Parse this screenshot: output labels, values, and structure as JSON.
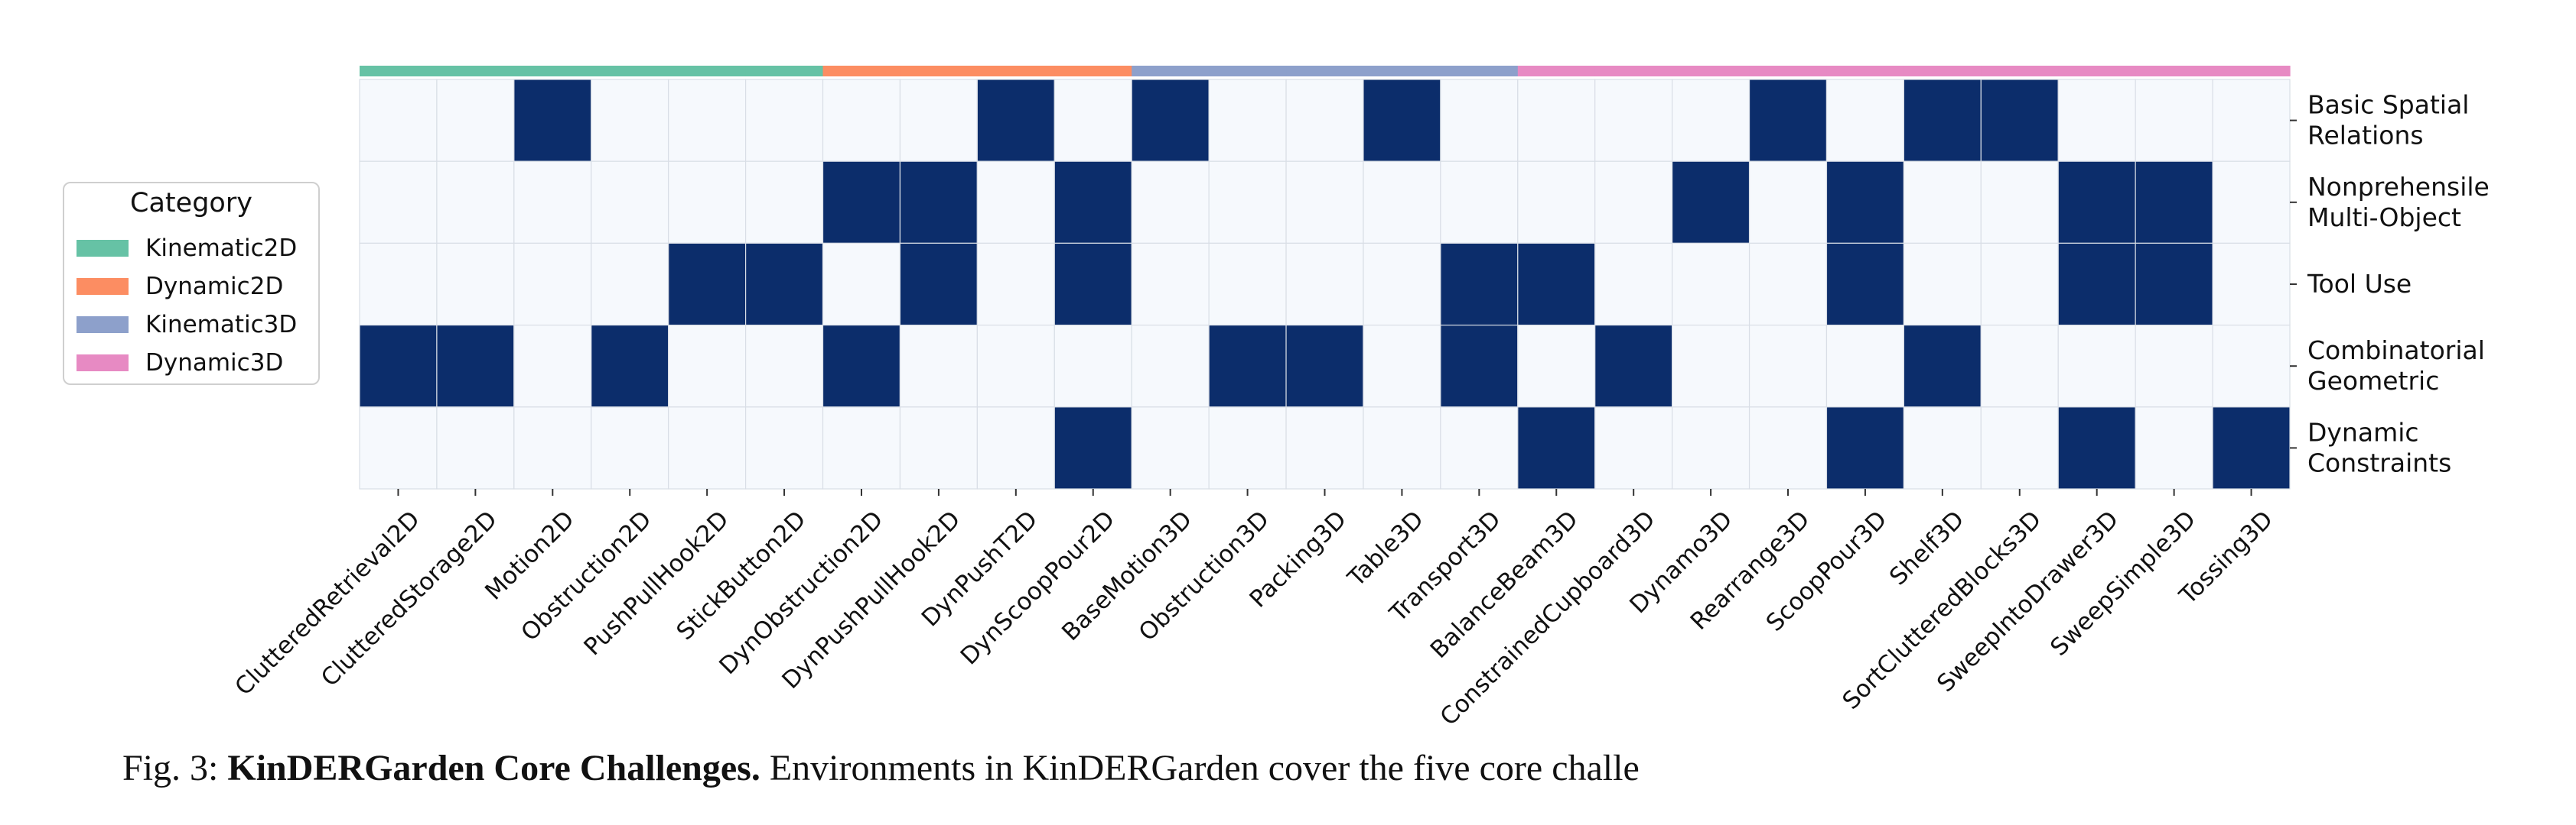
{
  "chart_data": {
    "type": "heatmap",
    "x_categories": [
      "ClutteredRetrieval2D",
      "ClutteredStorage2D",
      "Motion2D",
      "Obstruction2D",
      "PushPullHook2D",
      "StickButton2D",
      "DynObstruction2D",
      "DynPushPullHook2D",
      "DynPushT2D",
      "DynScoopPour2D",
      "BaseMotion3D",
      "Obstruction3D",
      "Packing3D",
      "Table3D",
      "Transport3D",
      "BalanceBeam3D",
      "ConstrainedCupboard3D",
      "Dynamo3D",
      "Rearrange3D",
      "ScoopPour3D",
      "Shelf3D",
      "SortClutteredBlocks3D",
      "SweepIntoDrawer3D",
      "SweepSimple3D",
      "Tossing3D"
    ],
    "y_categories": [
      [
        "Basic Spatial",
        "Relations"
      ],
      [
        "Nonprehensile",
        "Multi-Object"
      ],
      [
        "Tool Use"
      ],
      [
        "Combinatorial",
        "Geometric"
      ],
      [
        "Dynamic",
        "Constraints"
      ]
    ],
    "matrix": [
      [
        0,
        0,
        1,
        0,
        0,
        0,
        0,
        0,
        1,
        0,
        1,
        0,
        0,
        1,
        0,
        0,
        0,
        0,
        1,
        0,
        1,
        1,
        0,
        0,
        0
      ],
      [
        0,
        0,
        0,
        0,
        0,
        0,
        1,
        1,
        0,
        1,
        0,
        0,
        0,
        0,
        0,
        0,
        0,
        1,
        0,
        1,
        0,
        0,
        1,
        1,
        0
      ],
      [
        0,
        0,
        0,
        0,
        1,
        1,
        0,
        1,
        0,
        1,
        0,
        0,
        0,
        0,
        1,
        1,
        0,
        0,
        0,
        1,
        0,
        0,
        1,
        1,
        0
      ],
      [
        1,
        1,
        0,
        1,
        0,
        0,
        1,
        0,
        0,
        0,
        0,
        1,
        1,
        0,
        1,
        0,
        1,
        0,
        0,
        0,
        1,
        0,
        0,
        0,
        0
      ],
      [
        0,
        0,
        0,
        0,
        0,
        0,
        0,
        0,
        0,
        1,
        0,
        0,
        0,
        0,
        0,
        1,
        0,
        0,
        0,
        1,
        0,
        0,
        1,
        0,
        1
      ]
    ],
    "column_category_index": [
      0,
      0,
      0,
      0,
      0,
      0,
      1,
      1,
      1,
      1,
      2,
      2,
      2,
      2,
      2,
      3,
      3,
      3,
      3,
      3,
      3,
      3,
      3,
      3,
      3
    ],
    "categories": [
      {
        "name": "Kinematic2D",
        "color": "#66c2a5"
      },
      {
        "name": "Dynamic2D",
        "color": "#fc8d62"
      },
      {
        "name": "Kinematic3D",
        "color": "#8da0cb"
      },
      {
        "name": "Dynamic3D",
        "color": "#e78ac3"
      }
    ],
    "colors": {
      "filled": "#0c2d6b",
      "empty": "#f6f9fd",
      "grid": "#d9dee6"
    },
    "legend": {
      "title": "Category",
      "placement": "left"
    }
  },
  "caption": {
    "prefix": "Fig. 3: ",
    "bold": "KinDERGarden Core Challenges.",
    "text": " Environments in KinDERGarden cover the five core challe"
  }
}
